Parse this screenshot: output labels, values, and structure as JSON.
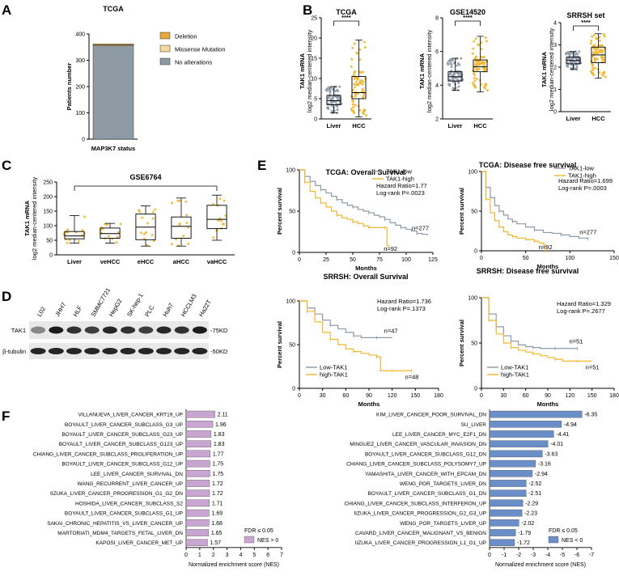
{
  "panel_labels": [
    "A",
    "B",
    "C",
    "D",
    "E",
    "F"
  ],
  "chart_data": [
    {
      "id": "A",
      "type": "bar",
      "title": "TCGA",
      "ylabel": "Patients number",
      "xlabel": "MAP3K7 status",
      "ylim": [
        0,
        400
      ],
      "yticks": [
        "0",
        "100",
        "200",
        "300",
        "400"
      ],
      "series": [
        {
          "name": "No alterations",
          "value": 355,
          "color": "#8e9ba4"
        },
        {
          "name": "Missense Mutation",
          "value": 3,
          "color": "#f6d89a"
        },
        {
          "name": "Deletion",
          "value": 4,
          "color": "#e6a93a"
        }
      ],
      "legend": [
        "Deletion",
        "Missense Mutation",
        "No alterations"
      ]
    },
    {
      "id": "B1",
      "type": "box",
      "title": "TCGA",
      "ylabel_main": "TAK1 mRNA",
      "ylabel_sub": "log2 median-centered intensity",
      "ylim": [
        0,
        25
      ],
      "yticks": [
        "0",
        "5",
        "10",
        "15",
        "20",
        "25"
      ],
      "categories": [
        "Liver",
        "HCC"
      ],
      "significance": "****",
      "boxes": [
        {
          "min": 1.5,
          "q1": 3.5,
          "median": 4.5,
          "q3": 5.8,
          "max": 8.0
        },
        {
          "min": 0.5,
          "q1": 5.0,
          "median": 6.5,
          "q3": 10.5,
          "max": 19.5
        }
      ]
    },
    {
      "id": "B2",
      "type": "box",
      "title": "GSE14520",
      "ylabel_main": "TAK1 mRNA",
      "ylabel_sub": "log2 median-centered intensity",
      "ylim": [
        2,
        8
      ],
      "yticks": [
        "2",
        "4",
        "6",
        "8"
      ],
      "categories": [
        "Liver",
        "HCC"
      ],
      "significance": "****",
      "boxes": [
        {
          "min": 3.7,
          "q1": 4.25,
          "median": 4.5,
          "q3": 4.8,
          "max": 5.6
        },
        {
          "min": 3.6,
          "q1": 4.8,
          "median": 5.1,
          "q3": 5.5,
          "max": 6.9
        }
      ]
    },
    {
      "id": "B3",
      "type": "box",
      "title": "SRRSH set",
      "ylabel_main": "TAK1 mRNA",
      "ylabel_sub": "log2 median-centered intensity",
      "ylim": [
        0,
        4
      ],
      "yticks": [
        "0",
        "1",
        "2",
        "3",
        "4"
      ],
      "categories": [
        "Liver",
        "HCC"
      ],
      "significance": "****",
      "boxes": [
        {
          "min": 1.9,
          "q1": 2.15,
          "median": 2.3,
          "q3": 2.45,
          "max": 2.7
        },
        {
          "min": 1.5,
          "q1": 2.2,
          "median": 2.55,
          "q3": 2.9,
          "max": 3.5
        }
      ]
    },
    {
      "id": "C",
      "type": "box",
      "title": "GSE6764",
      "ylabel_main": "TAK1 mRNA",
      "ylabel_sub": "log2 median-centered intensity",
      "ylim": [
        0,
        250
      ],
      "yticks": [
        "0",
        "50",
        "100",
        "150",
        "200",
        "250"
      ],
      "categories": [
        "Liver",
        "veHCC",
        "eHCC",
        "aHCC",
        "vaHCC"
      ],
      "boxes": [
        {
          "min": 40,
          "q1": 55,
          "median": 65,
          "q3": 80,
          "max": 135
        },
        {
          "min": 40,
          "q1": 57,
          "median": 73,
          "q3": 92,
          "max": 108
        },
        {
          "min": 30,
          "q1": 52,
          "median": 95,
          "q3": 140,
          "max": 168
        },
        {
          "min": 30,
          "q1": 57,
          "median": 98,
          "q3": 130,
          "max": 195
        },
        {
          "min": 50,
          "q1": 90,
          "median": 122,
          "q3": 170,
          "max": 205
        }
      ]
    },
    {
      "id": "E1",
      "type": "line",
      "title": "TCGA: Overall Survival",
      "ylabel": "Percent survival",
      "xlabel": "Months",
      "xlim": [
        0,
        125
      ],
      "ylim": [
        0,
        100
      ],
      "xticks": [
        "0",
        "25",
        "50",
        "75",
        "100",
        "125"
      ],
      "yticks": [
        "0",
        "50",
        "100"
      ],
      "legend": [
        "TAK1-low",
        "TAK1-high"
      ],
      "stats": {
        "hr": "Hazard Ratio=1.77",
        "logrank": "Log-rank P=.0023"
      },
      "n_labels": [
        "n=277",
        "n=92"
      ],
      "series": [
        {
          "name": "TAK1-low",
          "color": "#8c9aa8",
          "x": [
            0,
            5,
            10,
            15,
            20,
            25,
            30,
            35,
            40,
            45,
            50,
            55,
            60,
            65,
            70,
            75,
            80,
            85,
            90,
            95,
            100,
            105,
            110,
            115,
            120
          ],
          "y": [
            100,
            92,
            86,
            81,
            76,
            72,
            68,
            64,
            60,
            57,
            55,
            52,
            50,
            48,
            45,
            43,
            40,
            36,
            33,
            30,
            28,
            26,
            23,
            22,
            21
          ]
        },
        {
          "name": "TAK1-high",
          "color": "#f0b72f",
          "x": [
            0,
            5,
            10,
            15,
            20,
            25,
            30,
            35,
            40,
            45,
            50,
            55,
            60,
            65,
            70,
            75,
            80,
            82,
            85
          ],
          "y": [
            100,
            85,
            74,
            66,
            60,
            55,
            50,
            45,
            42,
            40,
            37,
            35,
            32,
            30,
            30,
            30,
            30,
            8,
            8
          ]
        }
      ]
    },
    {
      "id": "E2",
      "type": "line",
      "title": "TCGA: Disease free survival",
      "ylabel": "Percent survival",
      "xlabel": "Months",
      "xlim": [
        0,
        150
      ],
      "ylim": [
        0,
        100
      ],
      "xticks": [
        "0",
        "50",
        "100",
        "150"
      ],
      "yticks": [
        "0",
        "50",
        "100"
      ],
      "legend": [
        "TAK1-low",
        "TAK1-high"
      ],
      "stats": {
        "hr": "Hazard Ratio=1.699",
        "logrank": "Log-rank P=.0003"
      },
      "n_labels": [
        "n=277",
        "n=92"
      ],
      "series": [
        {
          "name": "TAK1-low",
          "color": "#8c9aa8",
          "x": [
            0,
            5,
            10,
            15,
            20,
            25,
            30,
            35,
            40,
            50,
            60,
            70,
            80,
            90,
            100,
            110,
            120
          ],
          "y": [
            100,
            80,
            67,
            57,
            50,
            45,
            40,
            37,
            34,
            30,
            26,
            23,
            22,
            20,
            18,
            16,
            15
          ]
        },
        {
          "name": "TAK1-high",
          "color": "#f0b72f",
          "x": [
            0,
            5,
            10,
            15,
            20,
            25,
            30,
            35,
            40,
            50,
            60,
            65,
            70,
            72
          ],
          "y": [
            100,
            65,
            48,
            38,
            30,
            24,
            20,
            18,
            16,
            14,
            12,
            10,
            8,
            0
          ]
        }
      ]
    },
    {
      "id": "E3",
      "type": "line",
      "title": "SRRSH: Overall Survival",
      "ylabel": "Percent survival",
      "xlabel": "Months",
      "xlim": [
        0,
        180
      ],
      "ylim": [
        0,
        100
      ],
      "xticks": [
        "0",
        "30",
        "60",
        "90",
        "120",
        "150",
        "180"
      ],
      "yticks": [
        "0",
        "50",
        "100"
      ],
      "legend": [
        "Low-TAK1",
        "high-TAK1"
      ],
      "stats": {
        "hr": "Hazard Ratio=1.736",
        "logrank": "Log-rank P=.1373"
      },
      "n_labels": [
        "n=47",
        "n=48"
      ],
      "series": [
        {
          "name": "Low-TAK1",
          "color": "#8c9aa8",
          "x": [
            0,
            10,
            20,
            30,
            40,
            50,
            60,
            70,
            80,
            90,
            100,
            110,
            120
          ],
          "y": [
            100,
            92,
            85,
            78,
            72,
            68,
            64,
            60,
            58,
            58,
            58,
            58,
            58
          ]
        },
        {
          "name": "high-TAK1",
          "color": "#f0b72f",
          "x": [
            0,
            10,
            20,
            30,
            40,
            50,
            60,
            70,
            80,
            90,
            100,
            105,
            110,
            120,
            130,
            140,
            145
          ],
          "y": [
            100,
            88,
            76,
            64,
            56,
            50,
            45,
            42,
            40,
            38,
            36,
            20,
            20,
            20,
            20,
            20,
            20
          ]
        }
      ]
    },
    {
      "id": "E4",
      "type": "line",
      "title": "SRRSH: Disease free survival",
      "ylabel": "Percent survival",
      "xlabel": "Months",
      "xlim": [
        0,
        180
      ],
      "ylim": [
        0,
        100
      ],
      "xticks": [
        "0",
        "30",
        "60",
        "90",
        "120",
        "150",
        "180"
      ],
      "yticks": [
        "0",
        "50",
        "100"
      ],
      "legend": [
        "Low-TAK1",
        "high-TAK1"
      ],
      "stats": {
        "hr": "Hazard Ratio=1.329",
        "logrank": "Log-rank P=.2677"
      },
      "n_labels": [
        "n=51",
        "n=51"
      ],
      "series": [
        {
          "name": "Low-TAK1",
          "color": "#8c9aa8",
          "x": [
            0,
            10,
            20,
            30,
            40,
            50,
            60,
            70,
            80,
            90,
            100,
            110,
            120,
            130
          ],
          "y": [
            100,
            82,
            68,
            58,
            52,
            48,
            46,
            45,
            44,
            44,
            44,
            44,
            44,
            44
          ]
        },
        {
          "name": "high-TAK1",
          "color": "#f0b72f",
          "x": [
            0,
            10,
            20,
            30,
            40,
            50,
            60,
            70,
            80,
            90,
            100,
            110,
            120,
            130,
            140,
            150
          ],
          "y": [
            100,
            75,
            60,
            50,
            45,
            42,
            40,
            38,
            36,
            34,
            32,
            30,
            30,
            30,
            30,
            30
          ]
        }
      ]
    },
    {
      "id": "F1",
      "type": "bar",
      "orientation": "horizontal",
      "xlabel": "Normalized enrichment score (NES)",
      "xlim": [
        0,
        7
      ],
      "xticks": [
        "0",
        "1",
        "2",
        "3",
        "4",
        "5",
        "6",
        "7"
      ],
      "legend": [
        "FDR ≤ 0.05",
        "NES > 0"
      ],
      "categories": [
        "VILLANUEVA_LIVER_CANCER_KRT19_UP",
        "BOYAULT_LIVER_CANCER_SUBCLASS_G3_UP",
        "BOYAULT_LIVER_CANCER_SUBCLASS_G23_UP",
        "BOYAULT_LIVER_CANCER_SUBCLASS_G123_UP",
        "CHIANG_LIVER_CANCER_SUBCLASS_PROLIFERATION_UP",
        "BOYAULT_LIVER_CANCER_SUBCLASS_G12_UP",
        "LEE_LIVER_CANCER_SURVIVAL_DN",
        "WANG_RECURRENT_LIVER_CANCER_UP",
        "IIZUKA_LIVER_CANCER_PROGRESSION_G1_G2_DN",
        "HOSHIDA_LIVER_CANCER_SUBCLASS_S2",
        "BOYAULT_LIVER_CANCER_SUBCLASS_G1_UP",
        "SAKAI_CHRONIC_HEPATITIS_VS_LIVER_CANCER_UP",
        "MARTORIATI_MDM4_TARGETS_FETAL_LIVER_DN",
        "KAPOSI_LIVER_CANCER_MET_UP"
      ],
      "values": [
        2.11,
        1.96,
        1.83,
        1.83,
        1.77,
        1.75,
        1.75,
        1.72,
        1.72,
        1.71,
        1.69,
        1.68,
        1.65,
        1.57
      ],
      "value_labels": [
        "2.11",
        "1.96",
        "1.83",
        "1.83",
        "1.77",
        "1.75",
        "1.75",
        "1.72",
        "1.72",
        "1.71",
        "1.69",
        "1.68",
        "1.65",
        "1.57"
      ]
    },
    {
      "id": "F2",
      "type": "bar",
      "orientation": "horizontal",
      "xlabel": "Normalized enrichment score (NES)",
      "xlim": [
        0,
        -7
      ],
      "xticks": [
        "0",
        "-1",
        "-2",
        "-3",
        "-4",
        "-5",
        "-6",
        "-7"
      ],
      "legend": [
        "FDR ≤ 0.05",
        "NES < 0"
      ],
      "categories": [
        "KIM_LIVER_CANCER_POOR_SURVIVAL_DN",
        "SU_LIVER",
        "LEE_LIVER_CANCER_MYC_E2F1_DN",
        "MINGUEZ_LIVER_CANCER_VASCULAR_INVASION_DN",
        "BOYAULT_LIVER_CANCER_SUBCLASS_G12_DN",
        "CHIANG_LIVER_CANCER_SUBCLASS_POLYSOMY7_UP",
        "YAMASHITA_LIVER_CANCER_WITH_EPCAM_DN",
        "WENG_POR_TARGETS_LIVER_DN",
        "BOYAULT_LIVER_CANCER_SUBCLASS_G1_DN",
        "CHIANG_LIVER_CANCER_SUBCLASS_INTERFERON_UP",
        "IIZUKA_LIVER_CANCER_PROGRESSION_G2_G3_UP",
        "WENG_POR_TARGETS_LIVER_UP",
        "CAVARD_LIVER_CANCER_MALIGNANT_VS_BENIGN",
        "IIZUKA_LIVER_CANCER_PROGRESSION_L1_G1_UP"
      ],
      "values": [
        -6.35,
        -4.94,
        -4.41,
        -4.01,
        -3.63,
        -3.16,
        -2.94,
        -2.52,
        -2.51,
        -2.29,
        -2.23,
        -2.02,
        -1.79,
        -1.72
      ],
      "value_labels": [
        "-6.35",
        "-4.94",
        "-4.41",
        "-4.01",
        "-3.63",
        "-3.16",
        "-2.94",
        "-2.52",
        "-2.51",
        "-2.29",
        "-2.23",
        "-2.02",
        "-1.79",
        "-1.72"
      ]
    }
  ],
  "western_blot": {
    "lanes": [
      "L02",
      "JHH7",
      "HLF",
      "SMMC7721",
      "HepG2",
      "SK-hep-1",
      "PLC",
      "Huh7",
      "HCCLM3",
      "Ha22T"
    ],
    "rows": [
      "TAK1",
      "β-tubulin"
    ],
    "markers": [
      "-75KD",
      "-50KD"
    ],
    "tak1_intensity": [
      0.45,
      0.95,
      0.85,
      0.8,
      0.9,
      0.85,
      0.8,
      0.9,
      0.85,
      0.95
    ]
  },
  "colors": {
    "grey": "#8c9aa8",
    "orange": "#f0b72f",
    "purple": "#c9a6d2",
    "blue": "#6a8ec8"
  }
}
